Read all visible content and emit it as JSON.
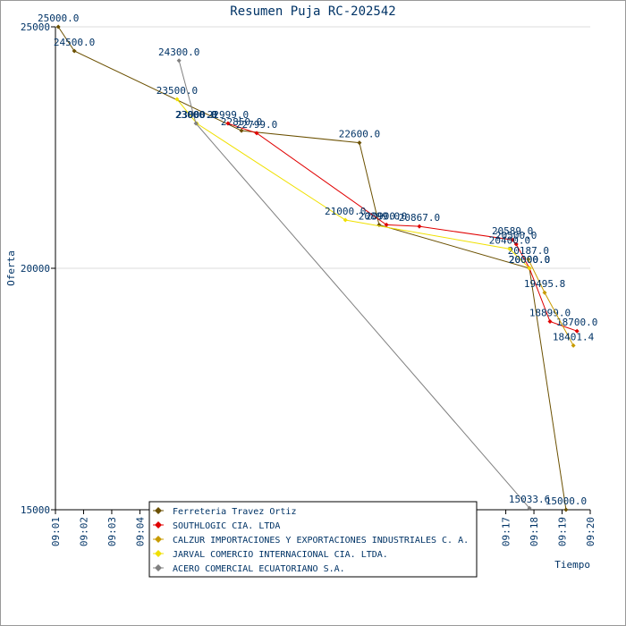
{
  "chart_data": {
    "type": "line",
    "title": "Resumen Puja RC-202542",
    "x_label": "Tiempo",
    "y_label": "Oferta",
    "xlim": [
      1,
      20
    ],
    "ylim": [
      15000,
      25000
    ],
    "xticks": [
      {
        "value": 1,
        "label": "09:01"
      },
      {
        "value": 2,
        "label": "09:02"
      },
      {
        "value": 3,
        "label": "09:03"
      },
      {
        "value": 4,
        "label": "09:04"
      },
      {
        "value": 17,
        "label": "09:17"
      },
      {
        "value": 18,
        "label": "09:18"
      },
      {
        "value": 19,
        "label": "09:19"
      },
      {
        "value": 20,
        "label": "09:20"
      }
    ],
    "yticks": [
      15000,
      20000,
      25000
    ],
    "grid": true,
    "series": [
      {
        "name": "Ferreteria Travez Ortiz",
        "color": "#6b5000",
        "x": [
          1.1,
          1.67,
          7.61,
          11.8,
          12.5,
          17.84,
          19.14
        ],
        "values": [
          25000,
          24500,
          22850,
          22600,
          20899,
          20000,
          15000
        ],
        "value_labels": [
          "25000.0",
          "24500.0",
          "22850.0",
          "22600.0",
          "20899.0",
          "20000.0",
          "15000.0"
        ]
      },
      {
        "name": "SOUTHLOGIC CIA. LTDA",
        "color": "#e00000",
        "x": [
          7.13,
          8.15,
          12.76,
          13.93,
          17.24,
          17.37,
          17.84,
          18.57,
          19.53
        ],
        "values": [
          22999,
          22799,
          20900,
          20867,
          20589,
          20500,
          20000,
          18899,
          18700
        ],
        "value_labels": [
          "22999.0",
          "22799.0",
          "20900.0",
          "20867.0",
          "20589.0",
          "20500.0",
          "20000.0",
          "18899.0",
          "18700.0"
        ]
      },
      {
        "name": "CALZUR IMPORTACIONES Y EXPORTACIONES INDUSTRIALES C. A.",
        "color": "#c89b00",
        "x": [
          17.8,
          18.38,
          19.4
        ],
        "values": [
          20187,
          19495.8,
          18401.4
        ],
        "value_labels": [
          "20187.0",
          "19495.8",
          "18401.4"
        ]
      },
      {
        "name": "JARVAL COMERCIO INTERNACIONAL CIA. LTDA.",
        "color": "#f0e000",
        "x": [
          5.32,
          6.02,
          11.3,
          17.14,
          17.84
        ],
        "values": [
          23500,
          23000,
          21000,
          20400,
          20000
        ],
        "value_labels": [
          "23500.0",
          "23000.0",
          "21000.0",
          "20400.0",
          "20000.0"
        ]
      },
      {
        "name": "ACERO COMERCIAL ECUATORIANO S.A.",
        "color": "#808080",
        "x": [
          5.39,
          5.99,
          17.84
        ],
        "values": [
          24300,
          23000,
          15033.6
        ],
        "value_labels": [
          "24300.0",
          "23000.0",
          "15033.6"
        ]
      }
    ]
  }
}
